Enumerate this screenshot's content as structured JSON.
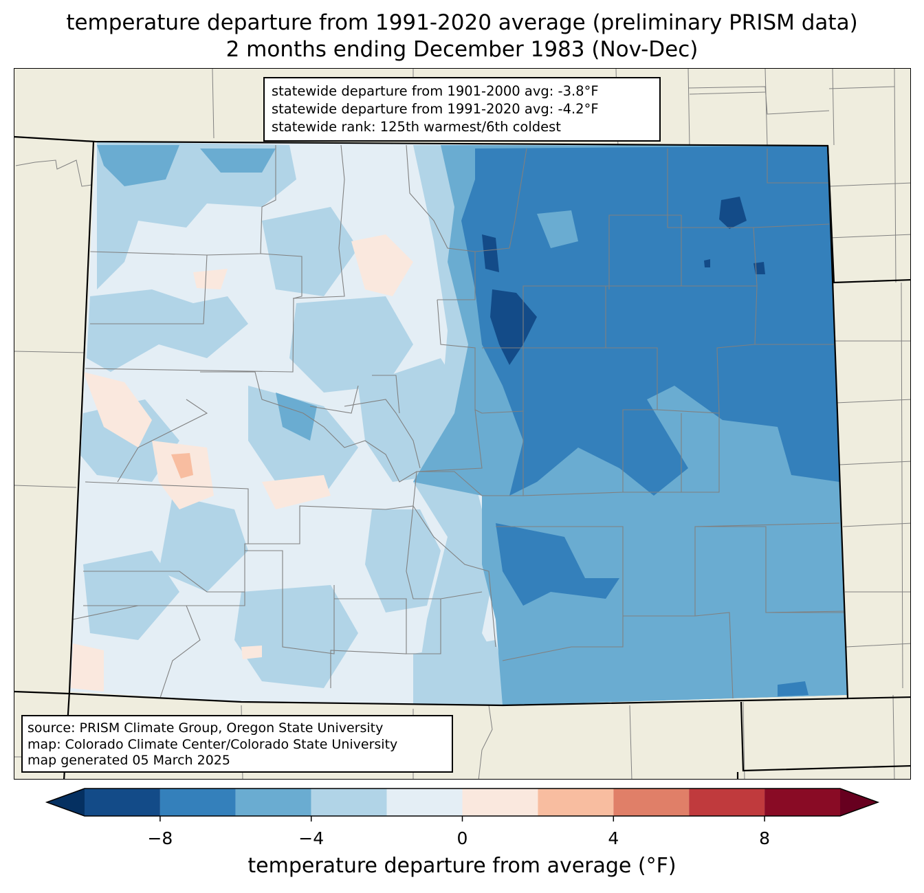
{
  "title": {
    "line1": "temperature departure from 1991-2020 average (preliminary PRISM data)",
    "line2": "2 months ending December 1983 (Nov-Dec)"
  },
  "stats": {
    "line1": "statewide departure from 1901-2000 avg: -3.8°F",
    "line2": "statewide departure from 1991-2020 avg: -4.2°F",
    "line3": "statewide rank: 125th warmest/6th coldest"
  },
  "source": {
    "line1": "source: PRISM Climate Group, Oregon State University",
    "line2": "map: Colorado Climate Center/Colorado State University",
    "line3": "map generated 05 March 2025"
  },
  "colorbar": {
    "label": "temperature departure from average (°F)",
    "ticks": [
      "−8",
      "−4",
      "0",
      "4",
      "8"
    ],
    "tick_values": [
      -8,
      -4,
      0,
      4,
      8
    ],
    "range": [
      -10,
      10
    ],
    "bins": [
      {
        "from": -10,
        "to": -8,
        "color": "#134b88"
      },
      {
        "from": -8,
        "to": -6,
        "color": "#3480bb"
      },
      {
        "from": -6,
        "to": -4,
        "color": "#6aacd1"
      },
      {
        "from": -4,
        "to": -2,
        "color": "#b1d4e7"
      },
      {
        "from": -2,
        "to": 0,
        "color": "#e4eef5"
      },
      {
        "from": 0,
        "to": 2,
        "color": "#fae8de"
      },
      {
        "from": 2,
        "to": 4,
        "color": "#f8bda0"
      },
      {
        "from": 4,
        "to": 6,
        "color": "#e07f68"
      },
      {
        "from": 6,
        "to": 8,
        "color": "#c03a3d"
      },
      {
        "from": 8,
        "to": 10,
        "color": "#890b25"
      }
    ],
    "under_color": "#053061",
    "over_color": "#67001f"
  },
  "map": {
    "land_color": "#efedde",
    "state_border_color": "#000000",
    "county_border_color": "#808080"
  }
}
